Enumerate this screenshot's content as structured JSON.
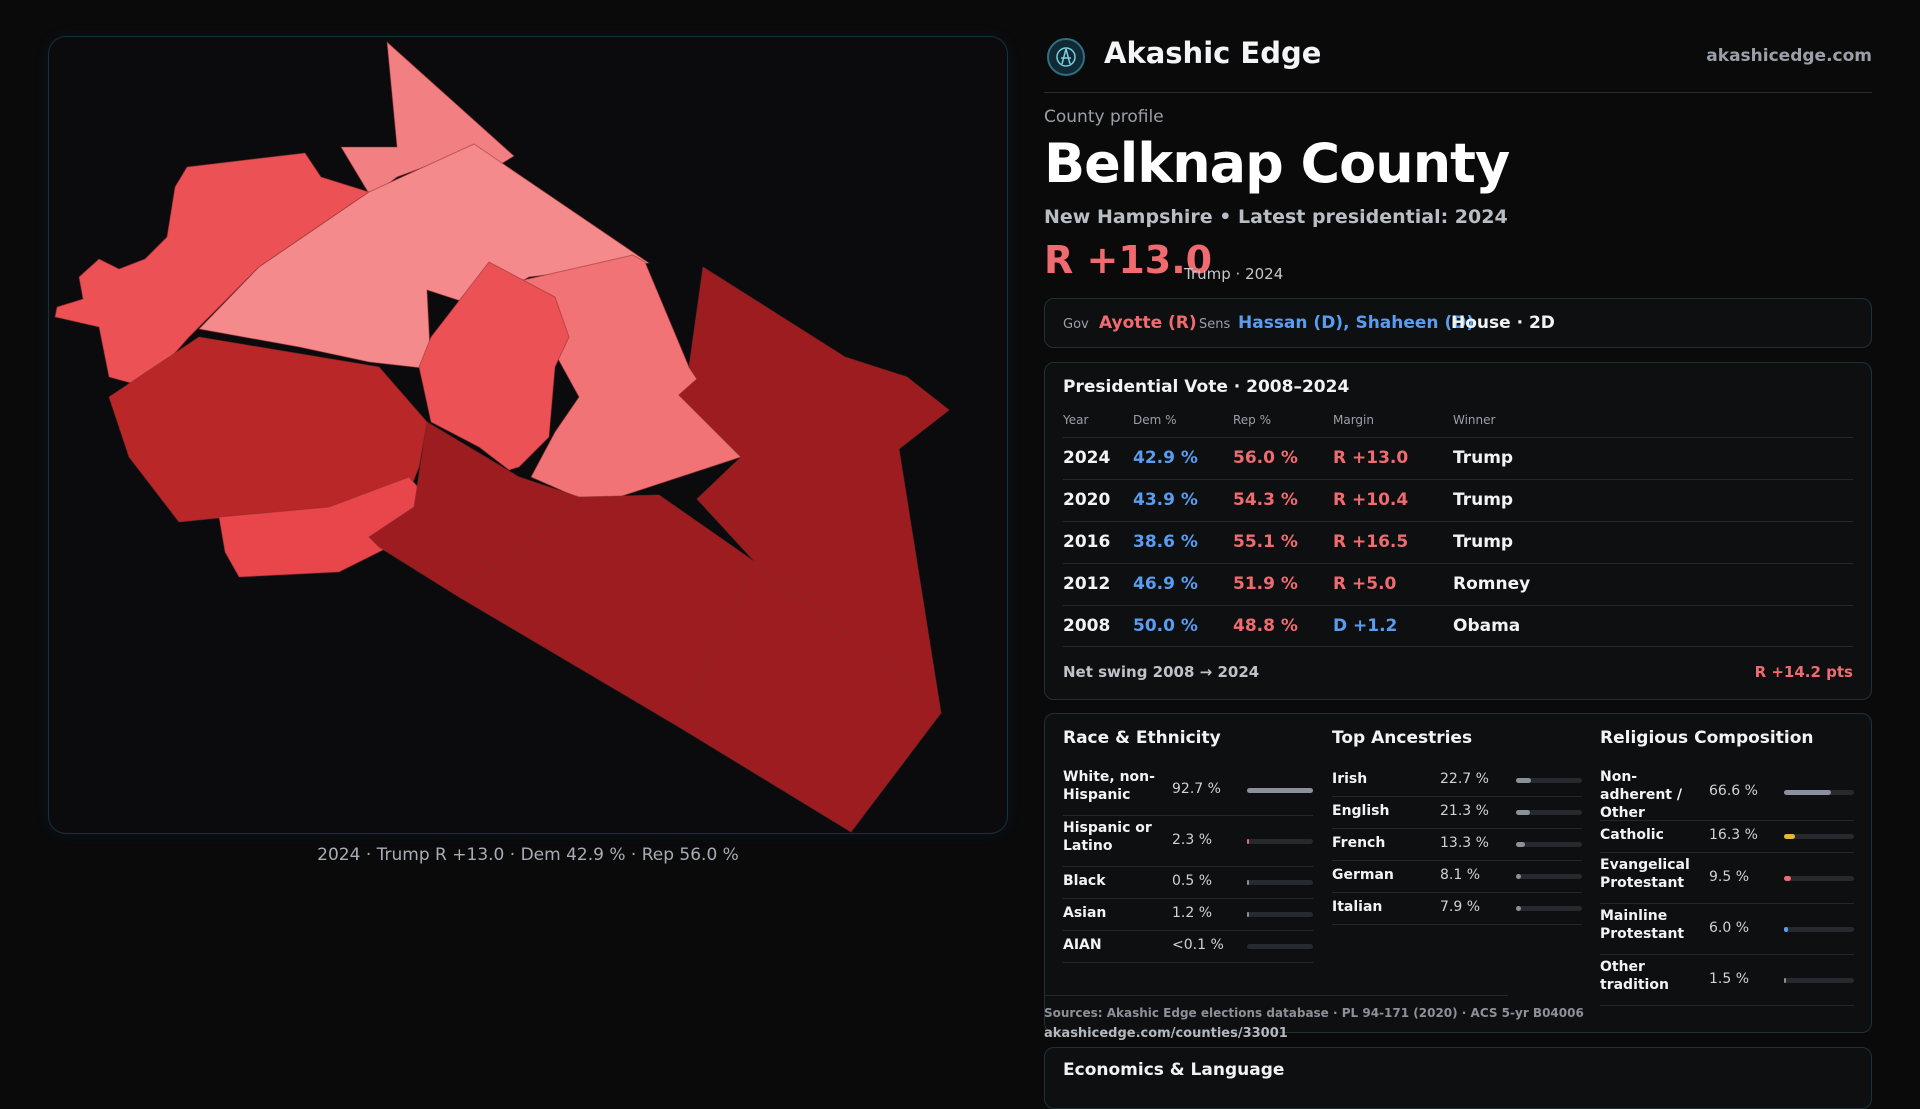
{
  "map": {
    "caption": "2024 · Trump R +13.0 · Dem 42.9 % · Rep 56.0 %"
  },
  "header": {
    "brand": "Akashic Edge",
    "domain": "akashicedge.com",
    "logo_icon": "compass-logo-icon"
  },
  "profile": {
    "eyebrow": "County profile",
    "title": "Belknap County",
    "subtitle": "New Hampshire • Latest presidential: 2024",
    "margin": "R +13.0",
    "margin_note": "Trump · 2024"
  },
  "officials": {
    "gov_label": "Gov",
    "gov": "Ayotte (R)",
    "sens_label": "Sens",
    "sens": "Hassan (D), Shaheen (D)",
    "house": "House · 2D"
  },
  "presidential": {
    "title": "Presidential Vote · 2008–2024",
    "columns": [
      "Year",
      "Dem %",
      "Rep %",
      "Margin",
      "Winner"
    ],
    "rows": [
      {
        "year": "2024",
        "dem": "42.9 %",
        "rep": "56.0 %",
        "margin": "R +13.0",
        "winner": "Trump"
      },
      {
        "year": "2020",
        "dem": "43.9 %",
        "rep": "54.3 %",
        "margin": "R +10.4",
        "winner": "Trump"
      },
      {
        "year": "2016",
        "dem": "38.6 %",
        "rep": "55.1 %",
        "margin": "R +16.5",
        "winner": "Trump"
      },
      {
        "year": "2012",
        "dem": "46.9 %",
        "rep": "51.9 %",
        "margin": "R +5.0",
        "winner": "Romney"
      },
      {
        "year": "2008",
        "dem": "50.0 %",
        "rep": "48.8 %",
        "margin": "D +1.2",
        "winner": "Obama"
      }
    ],
    "swing_label": "Net swing 2008 → 2024",
    "swing_value": "R +14.2 pts"
  },
  "race": {
    "title": "Race & Ethnicity",
    "items": [
      {
        "label": "White, non-Hispanic",
        "value": "92.7 %",
        "share": 0.927
      },
      {
        "label": "Hispanic or Latino",
        "value": "2.3 %",
        "share": 0.023
      },
      {
        "label": "Black",
        "value": "0.5 %",
        "share": 0.005
      },
      {
        "label": "Asian",
        "value": "1.2 %",
        "share": 0.012
      },
      {
        "label": "AIAN",
        "value": "<0.1 %",
        "share": 0.0
      }
    ]
  },
  "ancestry": {
    "title": "Top Ancestries",
    "items": [
      {
        "label": "Irish",
        "value": "22.7 %",
        "share": 0.227
      },
      {
        "label": "English",
        "value": "21.3 %",
        "share": 0.213
      },
      {
        "label": "French",
        "value": "13.3 %",
        "share": 0.133
      },
      {
        "label": "German",
        "value": "8.1 %",
        "share": 0.081
      },
      {
        "label": "Italian",
        "value": "7.9 %",
        "share": 0.079
      }
    ]
  },
  "religion": {
    "title": "Religious Composition",
    "items": [
      {
        "label": "Non-adherent / Other",
        "value": "66.6 %",
        "share": 0.666,
        "color": "#8a919c"
      },
      {
        "label": "Catholic",
        "value": "16.3 %",
        "share": 0.163,
        "color": "#e7b73a"
      },
      {
        "label": "Evangelical Protestant",
        "value": "9.5 %",
        "share": 0.095,
        "color": "#ef6b6f"
      },
      {
        "label": "Mainline Protestant",
        "value": "6.0 %",
        "share": 0.06,
        "color": "#5a9cf0"
      },
      {
        "label": "Other tradition",
        "value": "1.5 %",
        "share": 0.015,
        "color": "#8a919c"
      }
    ]
  },
  "footer": {
    "sources": "Sources: Akashic Edge elections database · PL 94-171 (2020) · ACS 5-yr B04006",
    "url": "akashicedge.com/counties/33001"
  },
  "econ": {
    "title": "Economics & Language"
  },
  "colors": {
    "dem": "#5a9cf0",
    "rep": "#f06b6f",
    "accent": "#2f6f82"
  }
}
